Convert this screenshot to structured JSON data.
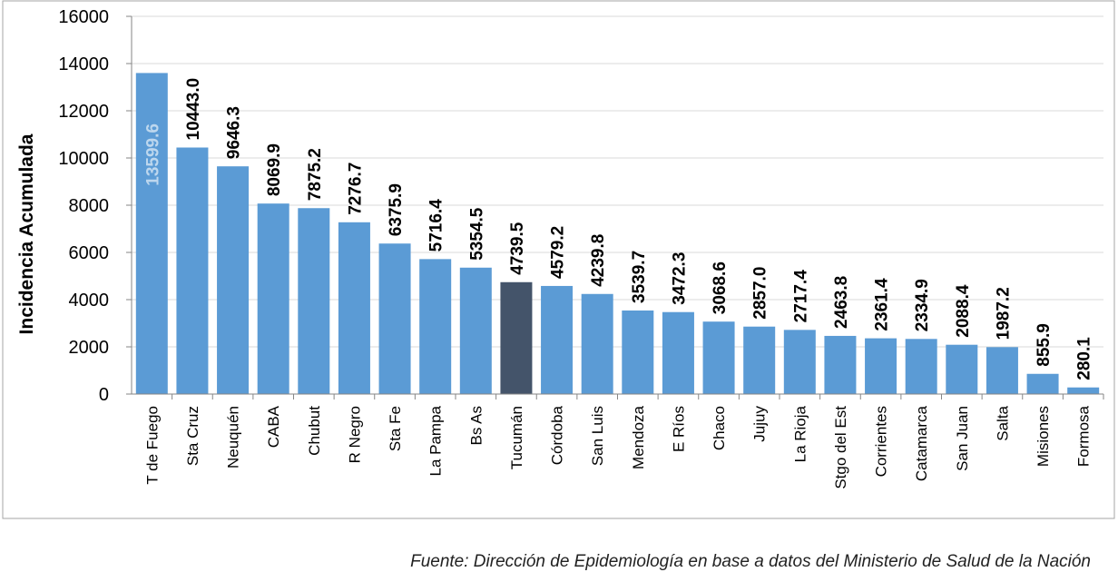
{
  "chart_data": {
    "type": "bar",
    "title": "",
    "xlabel": "",
    "ylabel": "Incidencia Acumulada",
    "ylim": [
      0,
      16000
    ],
    "yticks": [
      0,
      2000,
      4000,
      6000,
      8000,
      10000,
      12000,
      14000,
      16000
    ],
    "grid": true,
    "categories": [
      "T de Fuego",
      "Sta Cruz",
      "Neuquén",
      "CABA",
      "Chubut",
      "R Negro",
      "Sta Fe",
      "La Pampa",
      "Bs As",
      "Tucumán",
      "Córdoba",
      "San Luis",
      "Mendoza",
      "E Ríos",
      "Chaco",
      "Jujuy",
      "La Rioja",
      "Stgo del Est",
      "Corrientes",
      "Catamarca",
      "San Juan",
      "Salta",
      "Misiones",
      "Formosa"
    ],
    "values": [
      13599.6,
      10443.0,
      9646.3,
      8069.9,
      7875.2,
      7276.7,
      6375.9,
      5716.4,
      5354.5,
      4739.5,
      4579.2,
      4239.8,
      3539.7,
      3472.3,
      3068.6,
      2857.0,
      2717.4,
      2463.8,
      2361.4,
      2334.9,
      2088.4,
      1987.2,
      855.9,
      280.1
    ],
    "data_labels": [
      "13599.6",
      "10443.0",
      "9646.3",
      "8069.9",
      "7875.2",
      "7276.7",
      "6375.9",
      "5716.4",
      "5354.5",
      "4739.5",
      "4579.2",
      "4239.8",
      "3539.7",
      "3472.3",
      "3068.6",
      "2857.0",
      "2717.4",
      "2463.8",
      "2361.4",
      "2334.9",
      "2088.4",
      "1987.2",
      "855.9",
      "280.1"
    ],
    "highlight_category": "Tucumán",
    "colors": {
      "bar": "#5b9bd5",
      "highlight": "#44546a",
      "grid": "#d9d9d9"
    }
  },
  "source": "Fuente: Dirección de Epidemiología en base a datos del Ministerio de Salud de la Nación"
}
